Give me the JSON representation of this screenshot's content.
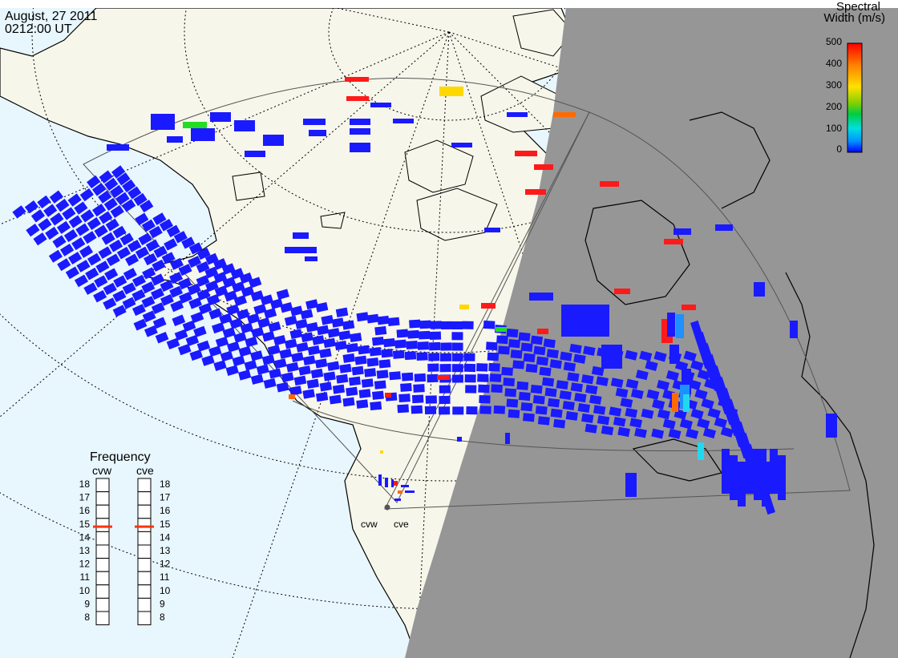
{
  "header": {
    "date": "August, 27 2011",
    "time": "0212:00 UT"
  },
  "colorbar": {
    "title_line1": "Spectral",
    "title_line2": "Width (m/s)",
    "ticks": [
      "500",
      "400",
      "300",
      "200",
      "100",
      "0"
    ],
    "gradient": [
      "#ff0000",
      "#ff8c00",
      "#ffd700",
      "#9acd32",
      "#00cc33",
      "#00e5e5",
      "#00a0ff",
      "#0000ff"
    ]
  },
  "frequency": {
    "title": "Frequency",
    "radars": [
      "cvw",
      "cve"
    ],
    "scale": [
      "18",
      "17",
      "16",
      "15",
      "14",
      "13",
      "12",
      "11",
      "10",
      "9",
      "8"
    ],
    "cvw_mhz": 15,
    "cve_mhz": 15,
    "marker_color": "#ff3300"
  },
  "radar_sites": {
    "left_label": "cvw",
    "right_label": "cve"
  },
  "colors": {
    "ocean": "#e8f6fd",
    "land_day": "#f7f6ea",
    "night_shade": "#969696",
    "fov_outline": "#555555",
    "coastline": "#000000",
    "scatter_low": "#1a1aff"
  }
}
